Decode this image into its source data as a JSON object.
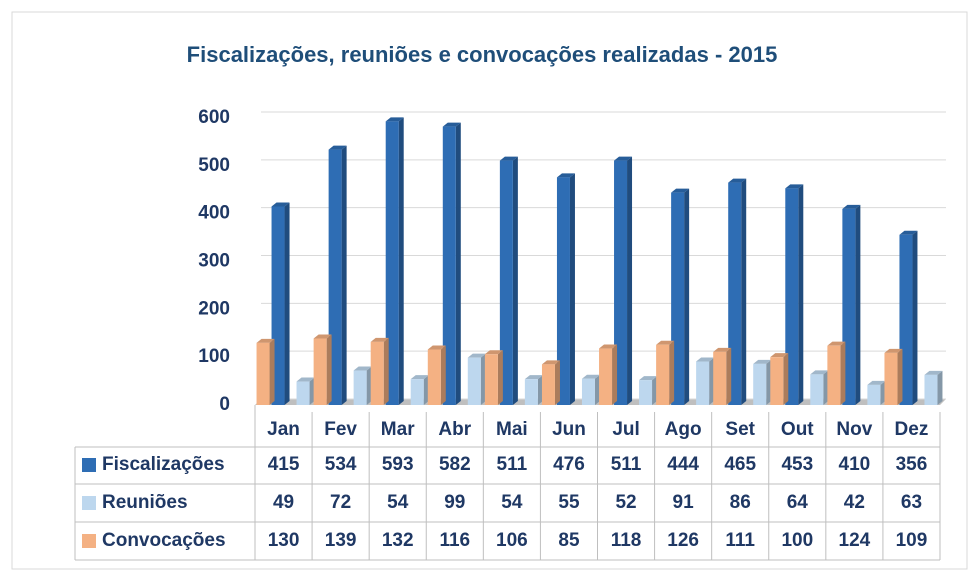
{
  "chart_data": {
    "type": "bar",
    "title": "Fiscalizações, reuniões e convocações realizadas - 2015",
    "categories": [
      "Jan",
      "Fev",
      "Mar",
      "Abr",
      "Mai",
      "Jun",
      "Jul",
      "Ago",
      "Set",
      "Out",
      "Nov",
      "Dez"
    ],
    "series": [
      {
        "name": "Fiscalizações",
        "color": "#2e6db4",
        "values": [
          415,
          534,
          593,
          582,
          511,
          476,
          511,
          444,
          465,
          453,
          410,
          356
        ]
      },
      {
        "name": "Reuniões",
        "color": "#bdd7ee",
        "values": [
          49,
          72,
          54,
          99,
          54,
          55,
          52,
          91,
          86,
          64,
          42,
          63
        ]
      },
      {
        "name": "Convocações",
        "color": "#f4b183",
        "values": [
          130,
          139,
          132,
          116,
          106,
          85,
          118,
          126,
          111,
          100,
          124,
          109
        ]
      }
    ],
    "ylim": [
      0,
      600
    ],
    "yticks": [
      0,
      100,
      200,
      300,
      400,
      500,
      600
    ],
    "grid": true
  }
}
